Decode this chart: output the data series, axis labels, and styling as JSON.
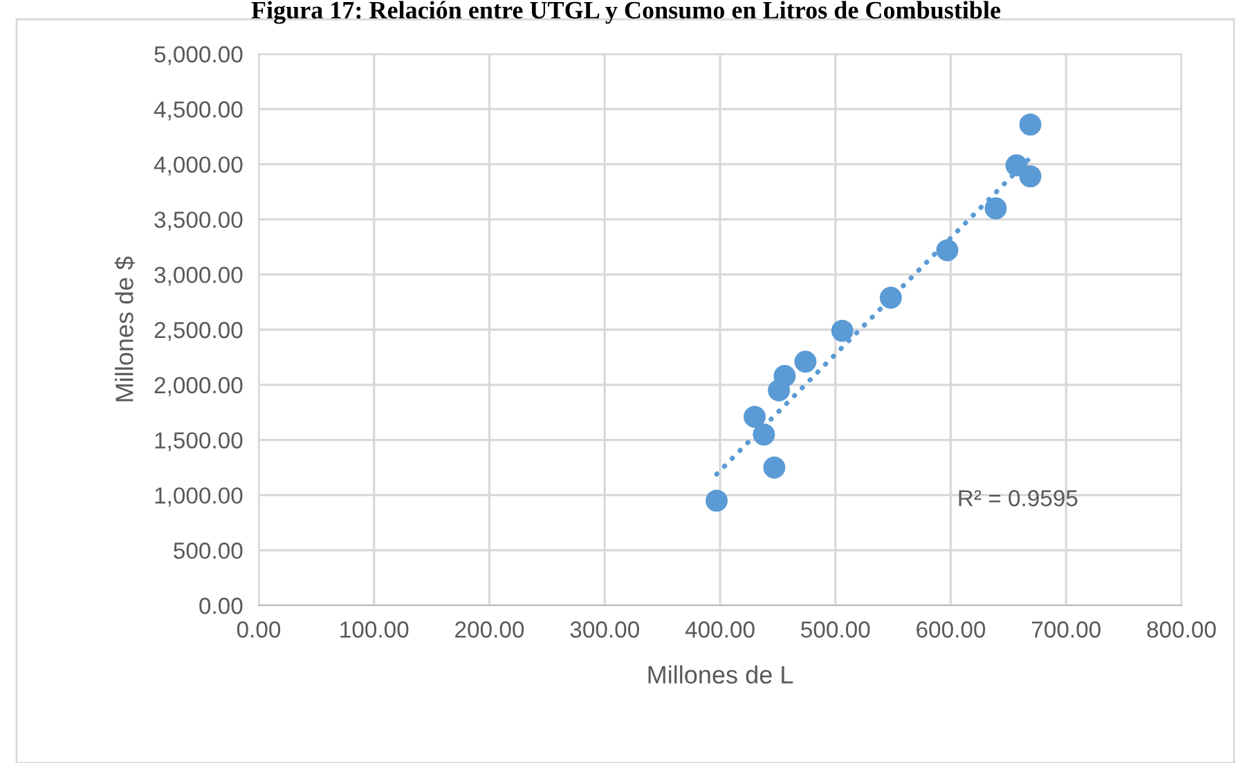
{
  "chart_data": {
    "type": "scatter",
    "title": "Figura 17: Relación entre UTGL y Consumo en Litros de Combustible",
    "xlabel": "Millones de L",
    "ylabel": "Millones de $",
    "series": [
      {
        "color": "#5b9bd5",
        "marker": "circle",
        "x": [
          397,
          447,
          438,
          430,
          451,
          456,
          474,
          506,
          548,
          597,
          639,
          657,
          669,
          669
        ],
        "values": [
          950,
          1250,
          1550,
          1710,
          1950,
          2080,
          2210,
          2490,
          2790,
          3220,
          3600,
          3990,
          3890,
          4360
        ]
      },
      {
        "type": "line",
        "color": "#5b9bd5",
        "line_style": "dotted",
        "x": [
          397,
          669
        ],
        "values": [
          1190,
          4060
        ]
      }
    ],
    "annotations": [
      "R² = 0.9595"
    ],
    "xlim": [
      0,
      800
    ],
    "xticks": [
      {
        "value": 0,
        "label": "0.00"
      },
      {
        "value": 100,
        "label": "100.00"
      },
      {
        "value": 200,
        "label": "200.00"
      },
      {
        "value": 300,
        "label": "300.00"
      },
      {
        "value": 400,
        "label": "400.00"
      },
      {
        "value": 500,
        "label": "500.00"
      },
      {
        "value": 600,
        "label": "600.00"
      },
      {
        "value": 700,
        "label": "700.00"
      },
      {
        "value": 800,
        "label": "800.00"
      }
    ],
    "ylim": [
      0,
      5000
    ],
    "yticks": [
      {
        "value": 0,
        "label": "0.00"
      },
      {
        "value": 500,
        "label": "500.00"
      },
      {
        "value": 1000,
        "label": "1,000.00"
      },
      {
        "value": 1500,
        "label": "1,500.00"
      },
      {
        "value": 2000,
        "label": "2,000.00"
      },
      {
        "value": 2500,
        "label": "2,500.00"
      },
      {
        "value": 3000,
        "label": "3,000.00"
      },
      {
        "value": 3500,
        "label": "3,500.00"
      },
      {
        "value": 4000,
        "label": "4,000.00"
      },
      {
        "value": 4500,
        "label": "4,500.00"
      },
      {
        "value": 5000,
        "label": "5,000.00"
      }
    ],
    "grid": true
  }
}
